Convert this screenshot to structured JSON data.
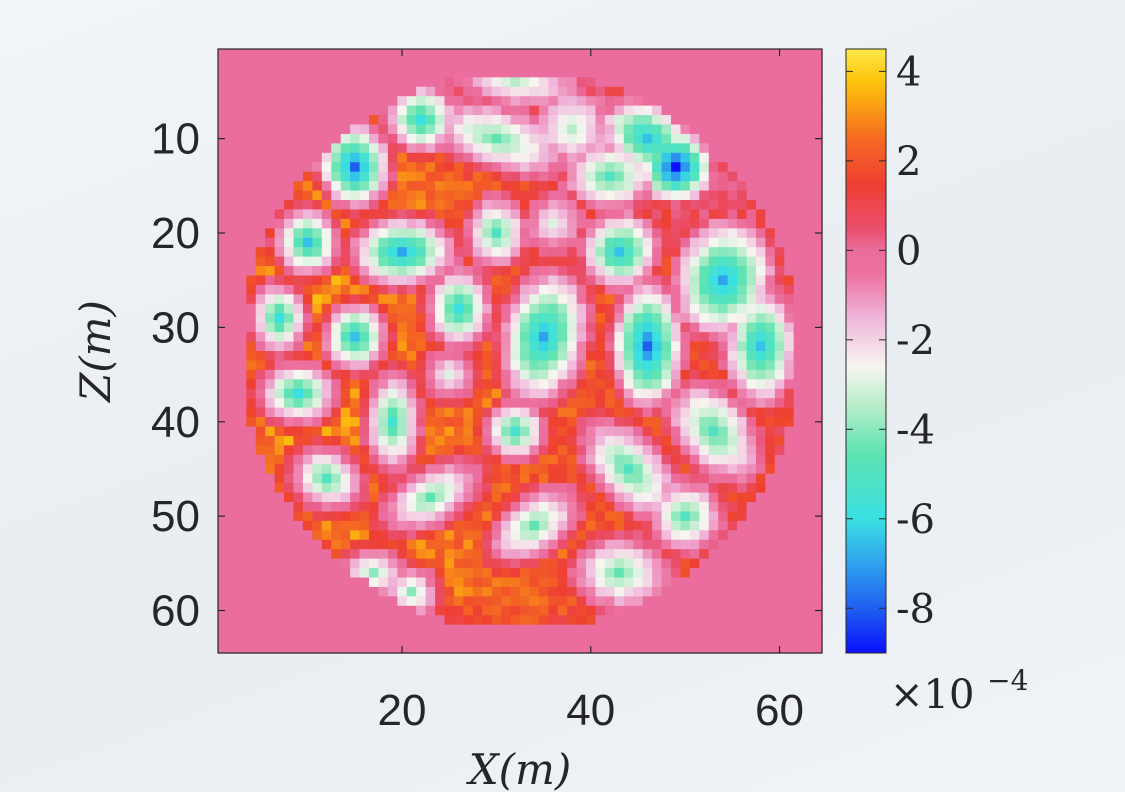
{
  "chart_data": {
    "type": "heatmap",
    "xlabel": "X(m)",
    "ylabel": "Z(m)",
    "x_ticks": [
      20,
      40,
      60
    ],
    "y_ticks": [
      10,
      20,
      30,
      40,
      50,
      60
    ],
    "xlim": [
      0.5,
      64.5
    ],
    "ylim": [
      0.5,
      64.5
    ],
    "y_direction": "reversed",
    "grid_size": [
      64,
      64
    ],
    "domain": {
      "shape": "circle",
      "center_x": 32.5,
      "center_z": 32.5,
      "radius": 29.5,
      "value_outside": 0
    },
    "colorbar": {
      "min": -9,
      "max": 4.5,
      "ticks": [
        4,
        2,
        0,
        -2,
        -4,
        -6,
        -8
      ],
      "tick_labels": [
        "4",
        "2",
        "0",
        "-2",
        "-4",
        "-6",
        "-8"
      ],
      "multiplier": "×10",
      "multiplier_exponent": "−4",
      "colormap": [
        {
          "v": -9.0,
          "c": "#0a10ff"
        },
        {
          "v": -8.0,
          "c": "#1f5ff0"
        },
        {
          "v": -7.0,
          "c": "#2fa2ee"
        },
        {
          "v": -6.0,
          "c": "#3ae0e2"
        },
        {
          "v": -4.5,
          "c": "#5fe3b0"
        },
        {
          "v": -3.5,
          "c": "#b6ecc9"
        },
        {
          "v": -2.6,
          "c": "#f6f6f0"
        },
        {
          "v": -1.5,
          "c": "#f0b5da"
        },
        {
          "v": -0.5,
          "c": "#ec6f9c"
        },
        {
          "v": 0.0,
          "c": "#ea6d9e"
        },
        {
          "v": 0.5,
          "c": "#ea4e6a"
        },
        {
          "v": 1.5,
          "c": "#ee4032"
        },
        {
          "v": 2.5,
          "c": "#f46a22"
        },
        {
          "v": 3.2,
          "c": "#fb9d14"
        },
        {
          "v": 3.8,
          "c": "#fcc50d"
        },
        {
          "v": 4.5,
          "c": "#ffe94a"
        }
      ]
    },
    "inclusions": [
      {
        "x": 15,
        "z": 13,
        "depth": 8.0,
        "rx": 3.0,
        "rz": 3.5,
        "angle": 0
      },
      {
        "x": 22,
        "z": 8,
        "depth": 6.0,
        "rx": 3.0,
        "rz": 2.8,
        "angle": 0
      },
      {
        "x": 10,
        "z": 21,
        "depth": 6.5,
        "rx": 2.8,
        "rz": 3.0,
        "angle": 0
      },
      {
        "x": 20,
        "z": 22,
        "depth": 7.0,
        "rx": 4.5,
        "rz": 3.0,
        "angle": 0
      },
      {
        "x": 7,
        "z": 29,
        "depth": 6.0,
        "rx": 2.5,
        "rz": 3.2,
        "angle": 0
      },
      {
        "x": 15,
        "z": 31,
        "depth": 6.5,
        "rx": 2.8,
        "rz": 3.0,
        "angle": 0
      },
      {
        "x": 9,
        "z": 37,
        "depth": 6.0,
        "rx": 3.5,
        "rz": 2.8,
        "angle": 0
      },
      {
        "x": 26,
        "z": 28,
        "depth": 6.0,
        "rx": 2.8,
        "rz": 3.5,
        "angle": 0
      },
      {
        "x": 25,
        "z": 35,
        "depth": 3.0,
        "rx": 2.5,
        "rz": 2.5,
        "angle": 0
      },
      {
        "x": 19,
        "z": 40,
        "depth": 5.5,
        "rx": 2.5,
        "rz": 4.5,
        "angle": 0
      },
      {
        "x": 12,
        "z": 46,
        "depth": 5.0,
        "rx": 3.5,
        "rz": 2.8,
        "angle": 0.6
      },
      {
        "x": 23,
        "z": 48,
        "depth": 4.5,
        "rx": 5.0,
        "rz": 2.6,
        "angle": -0.5
      },
      {
        "x": 32,
        "z": 41,
        "depth": 5.5,
        "rx": 2.6,
        "rz": 2.6,
        "angle": 0
      },
      {
        "x": 35,
        "z": 31,
        "depth": 7.0,
        "rx": 3.5,
        "rz": 5.5,
        "angle": 0.2
      },
      {
        "x": 34,
        "z": 51,
        "depth": 4.5,
        "rx": 4.5,
        "rz": 2.6,
        "angle": -0.6
      },
      {
        "x": 17,
        "z": 56,
        "depth": 4.0,
        "rx": 3.0,
        "rz": 2.3,
        "angle": 0
      },
      {
        "x": 21,
        "z": 58,
        "depth": 4.0,
        "rx": 2.5,
        "rz": 2.3,
        "angle": 0
      },
      {
        "x": 43,
        "z": 56,
        "depth": 4.5,
        "rx": 4.0,
        "rz": 3.0,
        "angle": 0
      },
      {
        "x": 44,
        "z": 45,
        "depth": 5.0,
        "rx": 5.0,
        "rz": 2.8,
        "angle": 0.8
      },
      {
        "x": 50,
        "z": 50,
        "depth": 5.0,
        "rx": 3.0,
        "rz": 2.8,
        "angle": 0
      },
      {
        "x": 46,
        "z": 32,
        "depth": 8.0,
        "rx": 2.8,
        "rz": 5.0,
        "angle": 0
      },
      {
        "x": 53,
        "z": 41,
        "depth": 5.0,
        "rx": 4.5,
        "rz": 3.0,
        "angle": 0.9
      },
      {
        "x": 58,
        "z": 32,
        "depth": 6.5,
        "rx": 2.8,
        "rz": 4.5,
        "angle": 0
      },
      {
        "x": 54,
        "z": 25,
        "depth": 7.0,
        "rx": 3.8,
        "rz": 4.5,
        "angle": 0.3
      },
      {
        "x": 43,
        "z": 22,
        "depth": 6.5,
        "rx": 3.0,
        "rz": 3.0,
        "angle": 0
      },
      {
        "x": 49,
        "z": 13,
        "depth": 9.0,
        "rx": 2.6,
        "rz": 2.6,
        "angle": 0
      },
      {
        "x": 46,
        "z": 10,
        "depth": 6.5,
        "rx": 3.5,
        "rz": 2.6,
        "angle": 0.5
      },
      {
        "x": 42,
        "z": 14,
        "depth": 5.0,
        "rx": 3.5,
        "rz": 2.5,
        "angle": 0
      },
      {
        "x": 30,
        "z": 10,
        "depth": 4.5,
        "rx": 6.0,
        "rz": 2.6,
        "angle": 0.3
      },
      {
        "x": 32,
        "z": 4,
        "depth": 3.5,
        "rx": 5.0,
        "rz": 2.0,
        "angle": 0.1
      },
      {
        "x": 38,
        "z": 9,
        "depth": 3.5,
        "rx": 3.0,
        "rz": 3.0,
        "angle": 0
      },
      {
        "x": 30,
        "z": 20,
        "depth": 5.0,
        "rx": 2.6,
        "rz": 3.0,
        "angle": 0
      },
      {
        "x": 36,
        "z": 19,
        "depth": 3.0,
        "rx": 2.5,
        "rz": 2.5,
        "angle": 0
      }
    ],
    "background": {
      "left_value": 3.5,
      "right_value": 1.0,
      "top_value": -1.5,
      "edge_value": 1.2
    }
  }
}
